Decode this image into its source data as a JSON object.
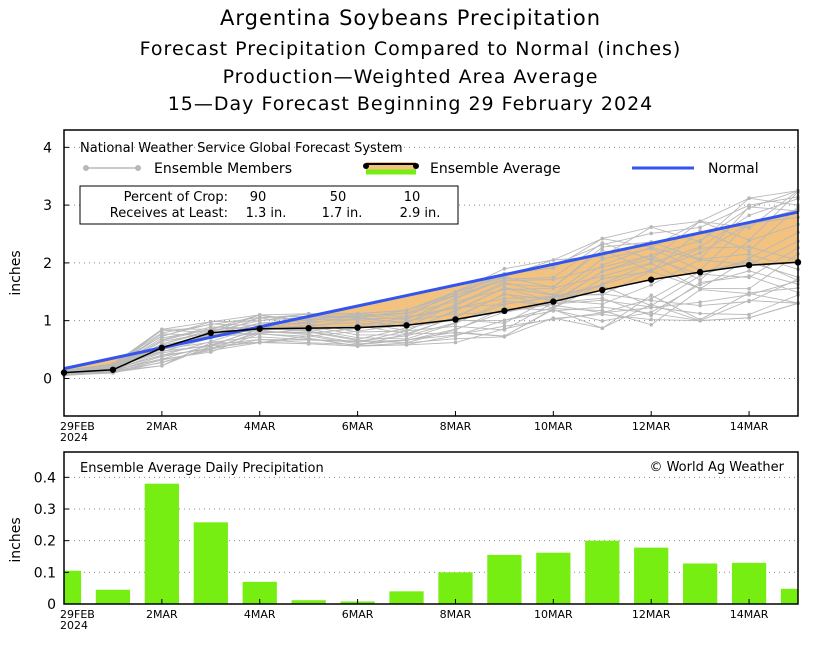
{
  "titles": {
    "line1": "Argentina Soybeans Precipitation",
    "line2": "Forecast Precipitation Compared to Normal (inches)",
    "line3": "Production—Weighted Area Average",
    "line4": "15—Day Forecast Beginning 29 February 2024"
  },
  "legend": {
    "source": "National Weather Service Global Forecast System",
    "members": "Ensemble Members",
    "average": "Ensemble Average",
    "normal": "Normal"
  },
  "crop_box": {
    "row1_label": "Percent of Crop:",
    "row1_values": [
      "90",
      "50",
      "10"
    ],
    "row2_label": "Receives at Least:",
    "row2_values": [
      "1.3 in.",
      "1.7 in.",
      "2.9 in."
    ]
  },
  "bottom_panel": {
    "title": "Ensemble Average Daily Precipitation",
    "copyright": "© World Ag Weather"
  },
  "colors": {
    "normal": "#3355ee",
    "average": "#000000",
    "shade": "#f2c27e",
    "members": "#b8b8b8",
    "bars": "#77ee11"
  },
  "chart_data": [
    {
      "type": "line",
      "ylabel": "inches",
      "x_labels": [
        "29FEB\n2024",
        "2MAR",
        "4MAR",
        "6MAR",
        "8MAR",
        "10MAR",
        "12MAR",
        "14MAR"
      ],
      "x_label_days": [
        0,
        2,
        4,
        6,
        8,
        10,
        12,
        14
      ],
      "ylim": [
        -0.65,
        4.3
      ],
      "yticks": [
        0,
        1,
        2,
        3,
        4
      ],
      "xlim": [
        0,
        15
      ],
      "normal": {
        "x": [
          0,
          15
        ],
        "y": [
          0.17,
          2.88
        ]
      },
      "ensemble_average": {
        "x": [
          0,
          1,
          2,
          3,
          4,
          5,
          6,
          7,
          8,
          9,
          10,
          11,
          12,
          13,
          14,
          15
        ],
        "y": [
          0.1,
          0.15,
          0.53,
          0.79,
          0.86,
          0.87,
          0.88,
          0.92,
          1.02,
          1.17,
          1.33,
          1.53,
          1.71,
          1.84,
          1.96,
          2.01
        ]
      },
      "member_range": {
        "x": [
          0,
          1,
          2,
          3,
          4,
          5,
          6,
          7,
          8,
          9,
          10,
          11,
          12,
          13,
          14,
          15
        ],
        "min": [
          0.05,
          0.08,
          0.22,
          0.45,
          0.62,
          0.6,
          0.56,
          0.58,
          0.62,
          0.72,
          0.82,
          0.87,
          0.92,
          1.0,
          1.05,
          1.3
        ],
        "max": [
          0.14,
          0.25,
          0.85,
          0.98,
          1.1,
          1.12,
          1.12,
          1.18,
          1.5,
          1.9,
          2.05,
          2.42,
          2.62,
          2.72,
          3.12,
          3.25
        ]
      },
      "grid": true
    },
    {
      "type": "bar",
      "ylabel": "inches",
      "x_labels": [
        "29FEB\n2024",
        "2MAR",
        "4MAR",
        "6MAR",
        "8MAR",
        "10MAR",
        "12MAR",
        "14MAR"
      ],
      "x_label_days": [
        0,
        2,
        4,
        6,
        8,
        10,
        12,
        14
      ],
      "ylim": [
        0,
        0.48
      ],
      "yticks": [
        0,
        0.1,
        0.2,
        0.3,
        0.4
      ],
      "ytick_labels": [
        "0",
        "0.1",
        "0.2",
        "0.3",
        "0.4"
      ],
      "x": [
        0,
        1,
        2,
        3,
        4,
        5,
        6,
        7,
        8,
        9,
        10,
        11,
        12,
        13,
        14,
        15
      ],
      "values": [
        0.105,
        0.045,
        0.38,
        0.258,
        0.07,
        0.012,
        0.008,
        0.04,
        0.1,
        0.155,
        0.162,
        0.2,
        0.178,
        0.128,
        0.13,
        0.048
      ],
      "grid": true
    }
  ]
}
